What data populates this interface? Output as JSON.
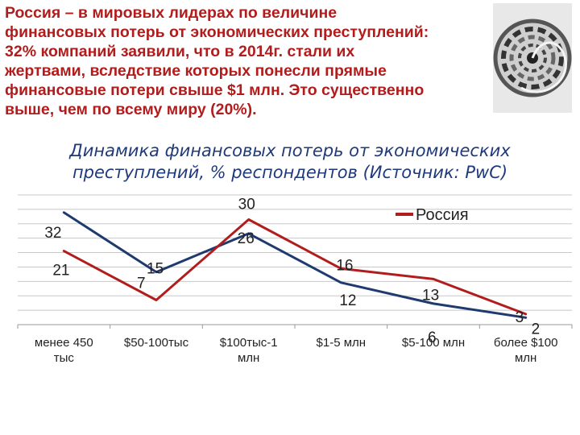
{
  "intro": {
    "lines": [
      "Россия – в мировых лидерах по величине",
      "финансовых потерь от экономических преступлений:",
      "32% компаний заявили, что в 2014г. стали их",
      "жертвами, вследствие которых понесли прямые",
      "финансовые потери свыше $1 млн. Это существенно",
      "выше, чем по всему миру (20%)."
    ]
  },
  "chart_data": {
    "type": "line",
    "title_lines": [
      "Динамика финансовых потерь от экономических",
      "преступлений, % респондентов (Источник: PwC)"
    ],
    "categories": [
      [
        "менее 450",
        "тыс"
      ],
      [
        "$50-100тыс"
      ],
      [
        "$100тыс-1",
        "млн"
      ],
      [
        "$1-5 млн"
      ],
      [
        "$5-100 млн"
      ],
      [
        "более $100",
        "млн"
      ]
    ],
    "series": [
      {
        "name": "Россия",
        "color": "#b11d1d",
        "values": [
          21,
          7,
          30,
          16,
          13,
          3
        ]
      },
      {
        "name": "",
        "color": "#1f3a6e",
        "values": [
          32,
          15,
          26,
          12,
          6,
          2
        ]
      }
    ],
    "ylim": [
      0,
      37
    ],
    "grid": true,
    "legend": "top-right"
  }
}
